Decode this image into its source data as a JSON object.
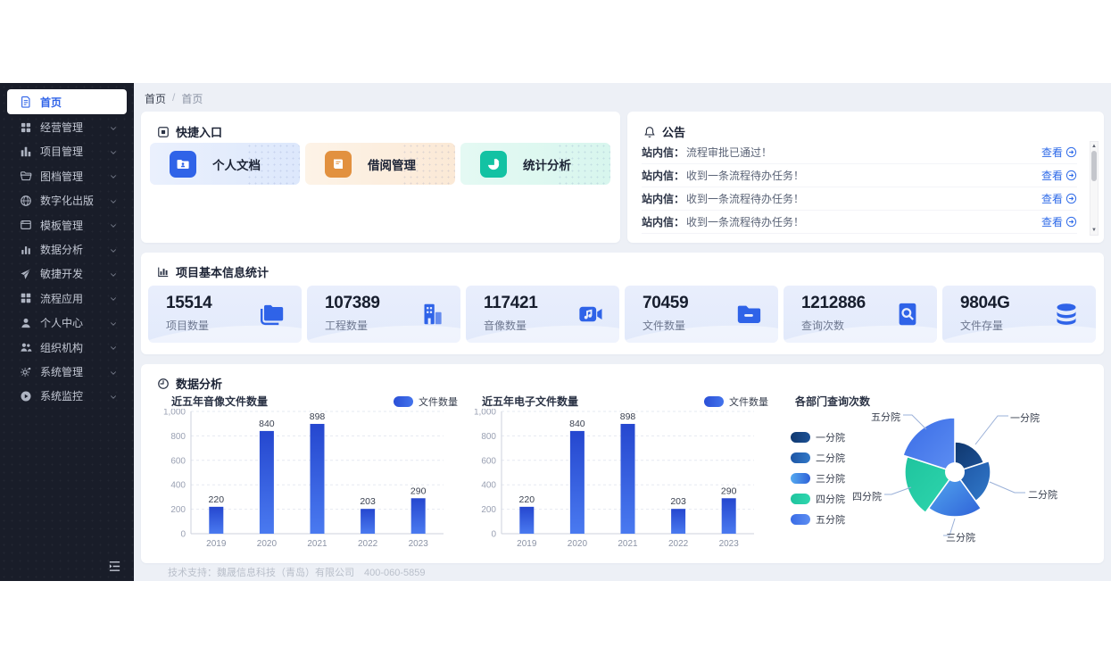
{
  "colors": {
    "accent_blue": "#2f63e8",
    "sidebar_bg": "#191d29",
    "main_bg": "#edf0f6",
    "link_blue": "#2f6be8",
    "bar_gradient": [
      "#2547cf",
      "#4a7af0"
    ],
    "stat_tile_bg": "#e9eefc"
  },
  "sidebar": {
    "items": [
      {
        "label": "首页",
        "icon": "home-document",
        "active": true,
        "has_children": false
      },
      {
        "label": "经营管理",
        "icon": "business-grid",
        "active": false,
        "has_children": true
      },
      {
        "label": "项目管理",
        "icon": "project-chart",
        "active": false,
        "has_children": true
      },
      {
        "label": "图档管理",
        "icon": "archive-folder",
        "active": false,
        "has_children": true
      },
      {
        "label": "数字化出版",
        "icon": "digital-globe",
        "active": false,
        "has_children": true
      },
      {
        "label": "模板管理",
        "icon": "template-card",
        "active": false,
        "has_children": true
      },
      {
        "label": "数据分析",
        "icon": "data-bars",
        "active": false,
        "has_children": true
      },
      {
        "label": "敏捷开发",
        "icon": "agile-plane",
        "active": false,
        "has_children": true
      },
      {
        "label": "流程应用",
        "icon": "process-grid",
        "active": false,
        "has_children": true
      },
      {
        "label": "个人中心",
        "icon": "user",
        "active": false,
        "has_children": true
      },
      {
        "label": "组织机构",
        "icon": "organization-users",
        "active": false,
        "has_children": true
      },
      {
        "label": "系统管理",
        "icon": "settings-gears",
        "active": false,
        "has_children": true
      },
      {
        "label": "系统监控",
        "icon": "monitor-play",
        "active": false,
        "has_children": true
      }
    ]
  },
  "breadcrumb": {
    "crumbs": [
      "首页",
      "首页"
    ],
    "separator": "/"
  },
  "quick_entry": {
    "title": "快捷入口",
    "tiles": [
      {
        "label": "个人文档",
        "icon": "personal-doc",
        "icon_bg": "#2f63e8",
        "bg": "linear-gradient(90deg,#eaf0fd,#dde8fc)"
      },
      {
        "label": "借阅管理",
        "icon": "borrow-book",
        "icon_bg": "#e2913f",
        "bg": "linear-gradient(90deg,#fdf3e7,#fbe9d6)"
      },
      {
        "label": "统计分析",
        "icon": "stats-pie",
        "icon_bg": "#13c2a3",
        "bg": "linear-gradient(90deg,#e4f9f3,#d8f6ee)"
      }
    ]
  },
  "announcements": {
    "title": "公告",
    "view_label": "查看",
    "items": [
      {
        "prefix": "站内信：",
        "text": "流程审批已通过！"
      },
      {
        "prefix": "站内信：",
        "text": "收到一条流程待办任务！"
      },
      {
        "prefix": "站内信：",
        "text": "收到一条流程待办任务！"
      },
      {
        "prefix": "站内信：",
        "text": "收到一条流程待办任务！"
      }
    ]
  },
  "stats": {
    "title": "项目基本信息统计",
    "cards": [
      {
        "value": "15514",
        "label": "项目数量",
        "icon": "folder-copy"
      },
      {
        "value": "107389",
        "label": "工程数量",
        "icon": "building"
      },
      {
        "value": "117421",
        "label": "音像数量",
        "icon": "media-video"
      },
      {
        "value": "70459",
        "label": "文件数量",
        "icon": "folder-minus"
      },
      {
        "value": "1212886",
        "label": "查询次数",
        "icon": "file-search"
      },
      {
        "value": "9804G",
        "label": "文件存量",
        "icon": "database"
      }
    ]
  },
  "analysis": {
    "title": "数据分析"
  },
  "footer": {
    "text": "技术支持：魏晟信息科技（青岛）有限公司　400-060-5859"
  },
  "chart_data": [
    {
      "type": "bar",
      "title": "近五年音像文件数量",
      "legend": [
        "文件数量"
      ],
      "categories": [
        "2019",
        "2020",
        "2021",
        "2022",
        "2023"
      ],
      "values": [
        220,
        840,
        898,
        203,
        290
      ],
      "ylim": [
        0,
        1000
      ],
      "yticks": [
        0,
        200,
        400,
        600,
        800,
        1000
      ],
      "grid": "dashed-horizontal",
      "legend_position": "top-right",
      "value_labels": true
    },
    {
      "type": "bar",
      "title": "近五年电子文件数量",
      "legend": [
        "文件数量"
      ],
      "categories": [
        "2019",
        "2020",
        "2021",
        "2022",
        "2023"
      ],
      "values": [
        220,
        840,
        898,
        203,
        290
      ],
      "ylim": [
        0,
        1000
      ],
      "yticks": [
        0,
        200,
        400,
        600,
        800,
        1000
      ],
      "grid": "dashed-horizontal",
      "legend_position": "top-right",
      "value_labels": true
    },
    {
      "type": "pie",
      "subtype": "nightingale-rose",
      "title": "各部门查询次数",
      "categories": [
        "一分院",
        "二分院",
        "三分院",
        "四分院",
        "五分院"
      ],
      "values": [
        34,
        40,
        50,
        56,
        61
      ],
      "values_note": "relative radius, numeric values not shown on screen",
      "legend_position": "left",
      "slice_colors": [
        [
          "#10386f",
          "#1d5296"
        ],
        [
          "#1d55a4",
          "#3178c8"
        ],
        [
          "#55aaf0",
          "#2f62d8"
        ],
        [
          "#1fc49e",
          "#2fd6ae"
        ],
        [
          "#3a6ce6",
          "#5d8ef2"
        ]
      ]
    }
  ]
}
